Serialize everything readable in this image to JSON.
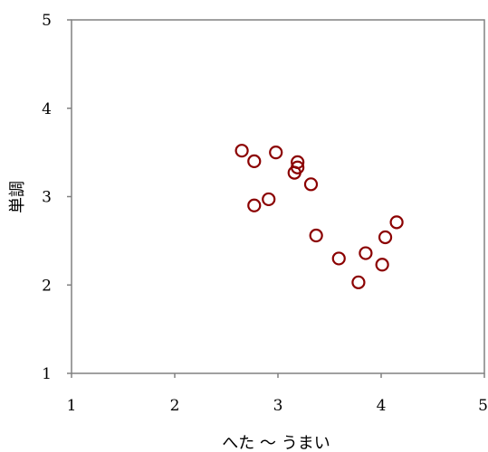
{
  "chart_data": {
    "type": "scatter",
    "xlabel": "へた ～ うまい",
    "ylabel": "単調",
    "xlim": [
      1,
      5
    ],
    "ylim": [
      1,
      5
    ],
    "xticks": [
      "1",
      "2",
      "3",
      "4",
      "5"
    ],
    "yticks": [
      "1",
      "2",
      "3",
      "4",
      "5"
    ],
    "grid": false,
    "marker": "open-circle",
    "marker_color": "#8b0000",
    "points": [
      {
        "x": 2.65,
        "y": 3.52
      },
      {
        "x": 2.77,
        "y": 3.4
      },
      {
        "x": 2.98,
        "y": 3.5
      },
      {
        "x": 3.19,
        "y": 3.39
      },
      {
        "x": 3.19,
        "y": 3.33
      },
      {
        "x": 3.16,
        "y": 3.27
      },
      {
        "x": 3.32,
        "y": 3.14
      },
      {
        "x": 2.91,
        "y": 2.97
      },
      {
        "x": 2.77,
        "y": 2.9
      },
      {
        "x": 4.15,
        "y": 2.71
      },
      {
        "x": 3.37,
        "y": 2.56
      },
      {
        "x": 4.04,
        "y": 2.54
      },
      {
        "x": 3.85,
        "y": 2.36
      },
      {
        "x": 3.59,
        "y": 2.3
      },
      {
        "x": 4.01,
        "y": 2.23
      },
      {
        "x": 3.78,
        "y": 2.03
      }
    ]
  }
}
